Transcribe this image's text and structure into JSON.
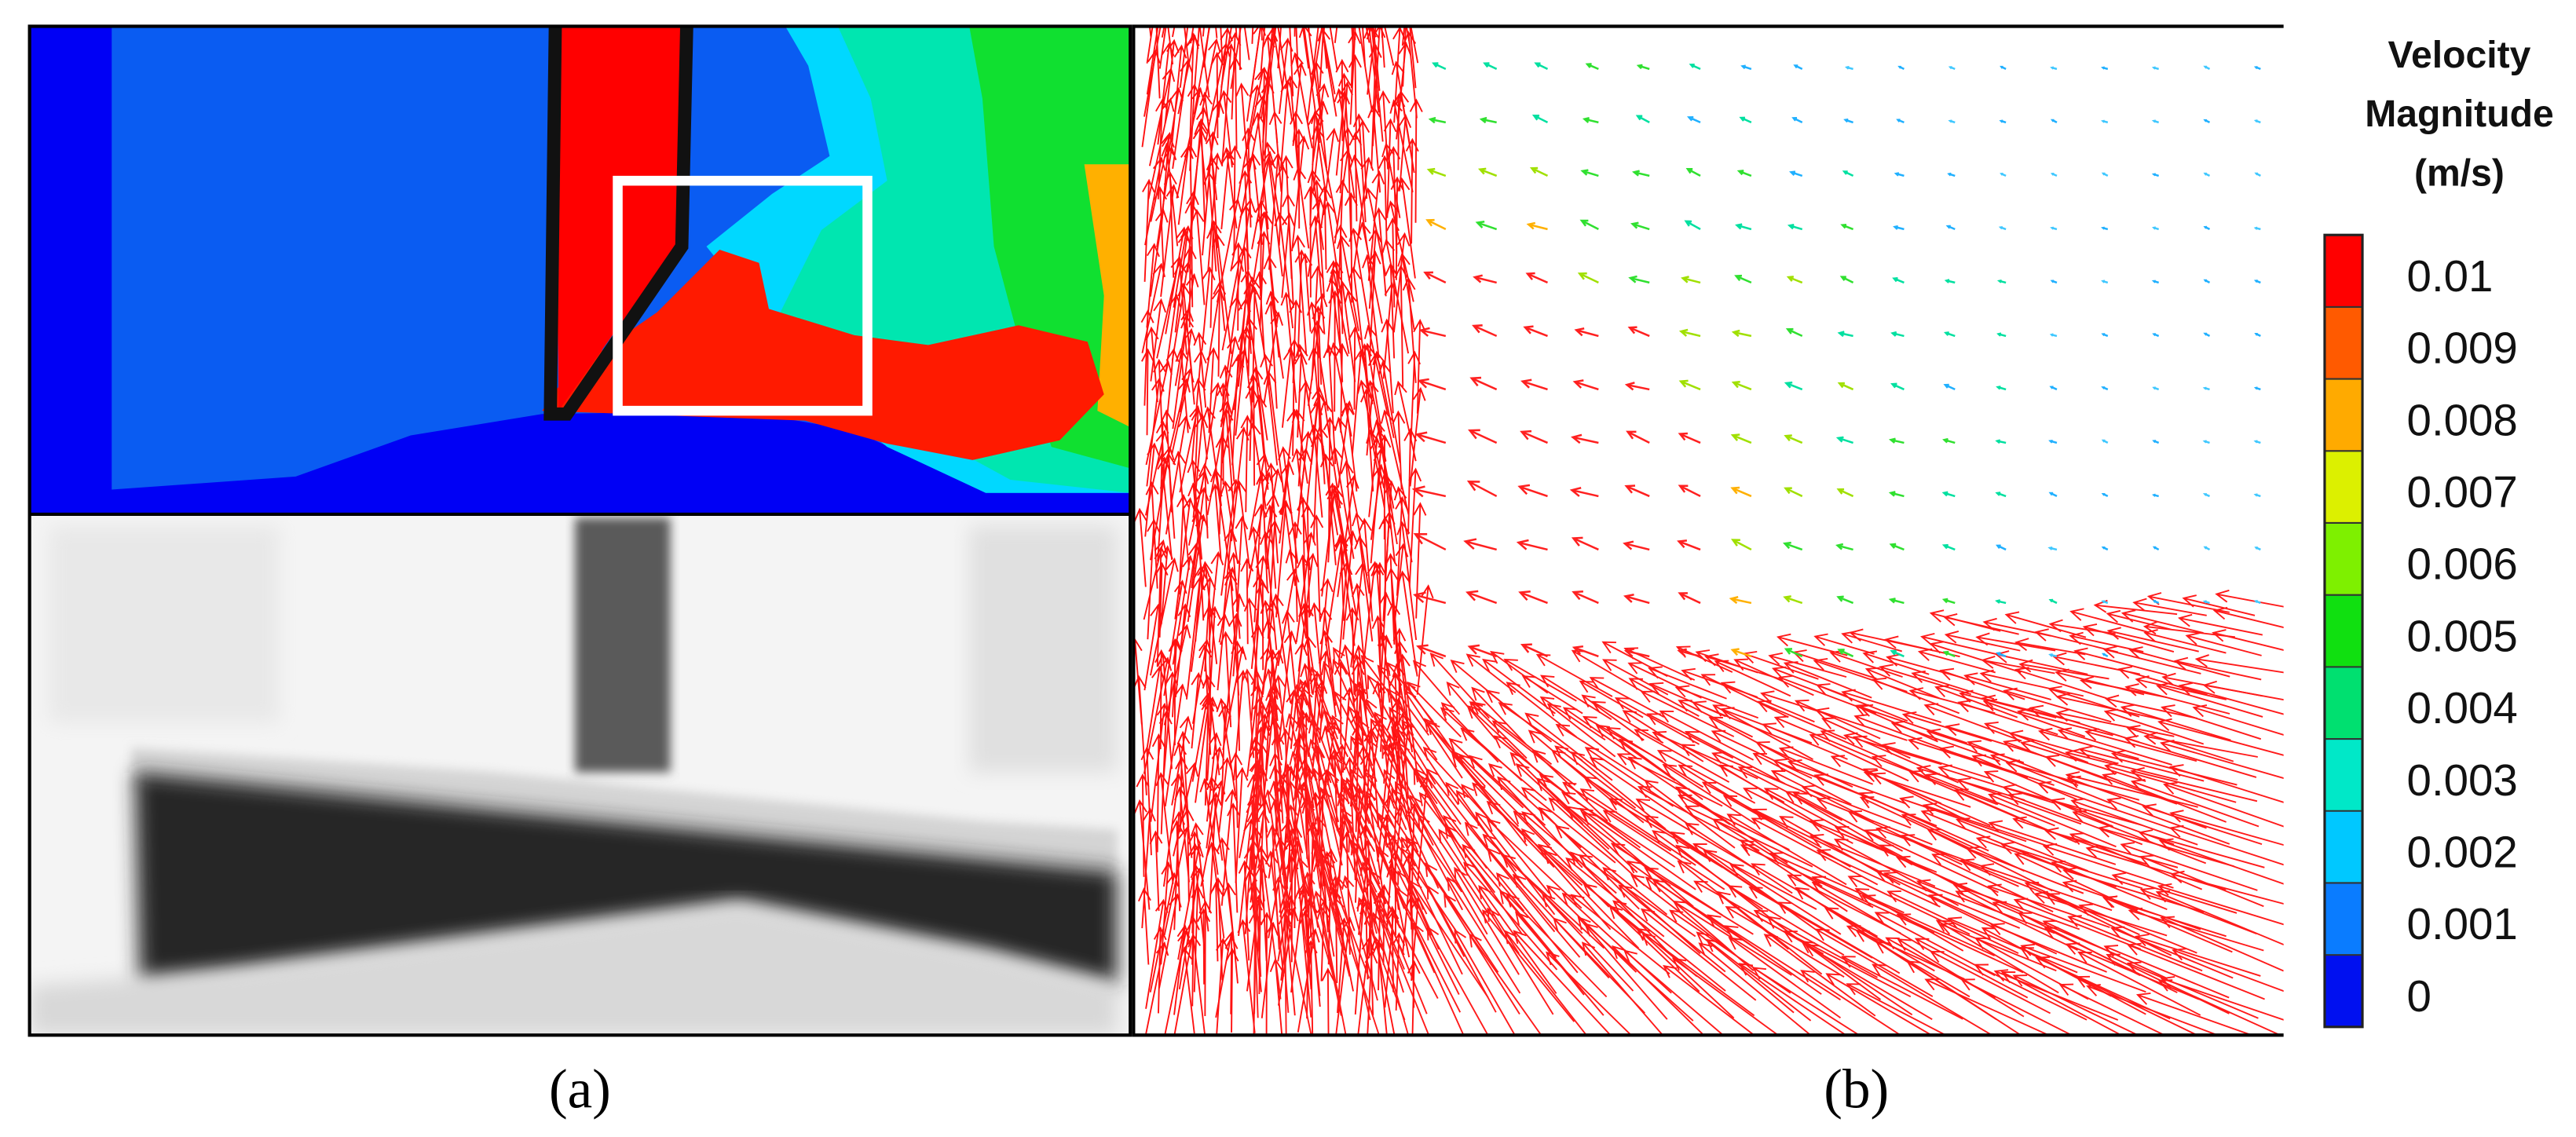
{
  "figure": {
    "panels": [
      {
        "label": "(a)"
      },
      {
        "label": "(b)"
      }
    ],
    "colorbar": {
      "title_lines": [
        "Velocity",
        "Magnitude",
        "(m/s)"
      ],
      "ticks": [
        0.01,
        0.009,
        0.008,
        0.007,
        0.006,
        0.005,
        0.004,
        0.003,
        0.002,
        0.001,
        0
      ]
    }
  }
}
